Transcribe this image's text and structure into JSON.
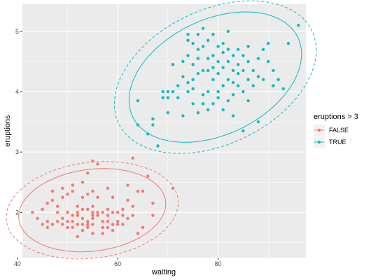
{
  "chart_data": {
    "type": "scatter",
    "title": "",
    "xlabel": "waiting",
    "ylabel": "eruptions",
    "xlim": [
      41,
      97.5
    ],
    "ylim": [
      1.25,
      5.45
    ],
    "x_ticks": [
      40,
      60,
      80
    ],
    "y_ticks": [
      2,
      3,
      4,
      5
    ],
    "grid": true,
    "legend": {
      "title": "eruptions > 3",
      "placement": "right"
    },
    "series": [
      {
        "name": "FALSE",
        "color": "#F8766D",
        "points": [
          [
            43,
            2.0
          ],
          [
            44,
            1.9
          ],
          [
            45,
            1.8
          ],
          [
            45,
            2.05
          ],
          [
            46,
            1.85
          ],
          [
            46,
            1.75
          ],
          [
            46,
            2.15
          ],
          [
            47,
            2.35
          ],
          [
            47,
            1.8
          ],
          [
            47,
            2.2
          ],
          [
            48,
            1.85
          ],
          [
            48,
            2.0
          ],
          [
            48,
            2.1
          ],
          [
            49,
            1.8
          ],
          [
            49,
            1.9
          ],
          [
            49,
            2.25
          ],
          [
            49,
            2.4
          ],
          [
            50,
            1.75
          ],
          [
            50,
            1.85
          ],
          [
            50,
            2.0
          ],
          [
            50,
            2.3
          ],
          [
            50,
            2.0
          ],
          [
            51,
            1.85
          ],
          [
            51,
            1.95
          ],
          [
            51,
            1.75
          ],
          [
            51,
            2.35
          ],
          [
            51,
            2.45
          ],
          [
            52,
            1.8
          ],
          [
            52,
            1.95
          ],
          [
            52,
            2.1
          ],
          [
            52,
            1.6
          ],
          [
            52,
            2.0
          ],
          [
            53,
            1.9
          ],
          [
            53,
            1.8
          ],
          [
            53,
            2.05
          ],
          [
            53,
            2.5
          ],
          [
            53,
            2.25
          ],
          [
            53,
            1.7
          ],
          [
            54,
            1.85
          ],
          [
            54,
            1.75
          ],
          [
            54,
            2.05
          ],
          [
            54,
            2.3
          ],
          [
            54,
            2.65
          ],
          [
            54,
            1.8
          ],
          [
            55,
            1.8
          ],
          [
            55,
            1.9
          ],
          [
            55,
            2.0
          ],
          [
            55,
            2.1
          ],
          [
            55,
            1.95
          ],
          [
            55,
            2.35
          ],
          [
            55,
            2.85
          ],
          [
            55,
            1.65
          ],
          [
            56,
            1.95
          ],
          [
            56,
            2.0
          ],
          [
            56,
            2.8
          ],
          [
            56,
            2.25
          ],
          [
            57,
            1.75
          ],
          [
            57,
            1.85
          ],
          [
            57,
            2.0
          ],
          [
            57,
            1.65
          ],
          [
            58,
            1.75
          ],
          [
            58,
            1.85
          ],
          [
            58,
            1.95
          ],
          [
            58,
            2.05
          ],
          [
            58,
            2.4
          ],
          [
            59,
            1.8
          ],
          [
            59,
            2.0
          ],
          [
            59,
            1.7
          ],
          [
            59,
            2.25
          ],
          [
            60,
            1.85
          ],
          [
            60,
            2.0
          ],
          [
            60,
            1.8
          ],
          [
            61,
            1.8
          ],
          [
            61,
            1.95
          ],
          [
            61,
            2.05
          ],
          [
            62,
            1.9
          ],
          [
            62,
            2.2
          ],
          [
            62,
            2.45
          ],
          [
            63,
            2.1
          ],
          [
            63,
            1.95
          ],
          [
            63,
            2.9
          ],
          [
            64,
            2.35
          ],
          [
            64,
            1.65
          ],
          [
            65,
            2.35
          ],
          [
            65,
            1.75
          ],
          [
            66,
            2.6
          ],
          [
            67,
            2.15
          ],
          [
            67,
            1.95
          ],
          [
            71,
            2.4
          ]
        ]
      },
      {
        "name": "TRUE",
        "color": "#00BFC4",
        "points": [
          [
            64,
            3.85
          ],
          [
            64,
            3.45
          ],
          [
            66,
            3.3
          ],
          [
            67,
            3.55
          ],
          [
            67,
            3.45
          ],
          [
            68,
            3.1
          ],
          [
            69,
            4.0
          ],
          [
            69,
            3.9
          ],
          [
            70,
            3.9
          ],
          [
            70,
            4.0
          ],
          [
            70,
            3.65
          ],
          [
            71,
            4.0
          ],
          [
            71,
            4.45
          ],
          [
            72,
            3.9
          ],
          [
            72,
            4.1
          ],
          [
            73,
            3.6
          ],
          [
            73,
            4.25
          ],
          [
            73,
            4.5
          ],
          [
            74,
            4.0
          ],
          [
            74,
            4.15
          ],
          [
            74,
            4.6
          ],
          [
            74,
            4.85
          ],
          [
            74,
            4.95
          ],
          [
            75,
            3.8
          ],
          [
            75,
            4.2
          ],
          [
            75,
            4.45
          ],
          [
            75,
            4.8
          ],
          [
            75,
            4.05
          ],
          [
            76,
            3.65
          ],
          [
            76,
            4.3
          ],
          [
            76,
            4.7
          ],
          [
            76,
            4.55
          ],
          [
            76,
            4.95
          ],
          [
            77,
            3.8
          ],
          [
            77,
            4.35
          ],
          [
            77,
            4.75
          ],
          [
            77,
            3.95
          ],
          [
            77,
            5.05
          ],
          [
            78,
            4.0
          ],
          [
            78,
            4.35
          ],
          [
            78,
            4.55
          ],
          [
            78,
            3.7
          ],
          [
            78,
            4.85
          ],
          [
            79,
            3.8
          ],
          [
            79,
            4.2
          ],
          [
            79,
            4.6
          ],
          [
            79,
            4.95
          ],
          [
            79,
            4.4
          ],
          [
            80,
            4.0
          ],
          [
            80,
            4.3
          ],
          [
            80,
            4.5
          ],
          [
            80,
            4.75
          ],
          [
            80,
            3.9
          ],
          [
            81,
            3.7
          ],
          [
            81,
            4.1
          ],
          [
            81,
            4.4
          ],
          [
            81,
            4.65
          ],
          [
            81,
            4.8
          ],
          [
            82,
            3.85
          ],
          [
            82,
            4.2
          ],
          [
            82,
            4.5
          ],
          [
            82,
            4.7
          ],
          [
            82,
            5.0
          ],
          [
            83,
            3.6
          ],
          [
            83,
            4.15
          ],
          [
            83,
            4.35
          ],
          [
            83,
            4.6
          ],
          [
            83,
            3.95
          ],
          [
            84,
            4.1
          ],
          [
            84,
            4.45
          ],
          [
            84,
            4.7
          ],
          [
            84,
            4.3
          ],
          [
            85,
            4.0
          ],
          [
            85,
            4.35
          ],
          [
            85,
            4.6
          ],
          [
            85,
            3.35
          ],
          [
            86,
            3.85
          ],
          [
            86,
            4.2
          ],
          [
            86,
            4.5
          ],
          [
            86,
            4.75
          ],
          [
            87,
            4.1
          ],
          [
            87,
            4.35
          ],
          [
            88,
            3.5
          ],
          [
            88,
            4.25
          ],
          [
            88,
            4.55
          ],
          [
            89,
            4.2
          ],
          [
            89,
            4.7
          ],
          [
            90,
            4.5
          ],
          [
            90,
            4.8
          ],
          [
            91,
            4.35
          ],
          [
            91,
            4.1
          ],
          [
            92,
            4.2
          ],
          [
            93,
            4.05
          ],
          [
            94,
            4.8
          ],
          [
            96,
            5.1
          ]
        ]
      }
    ]
  }
}
